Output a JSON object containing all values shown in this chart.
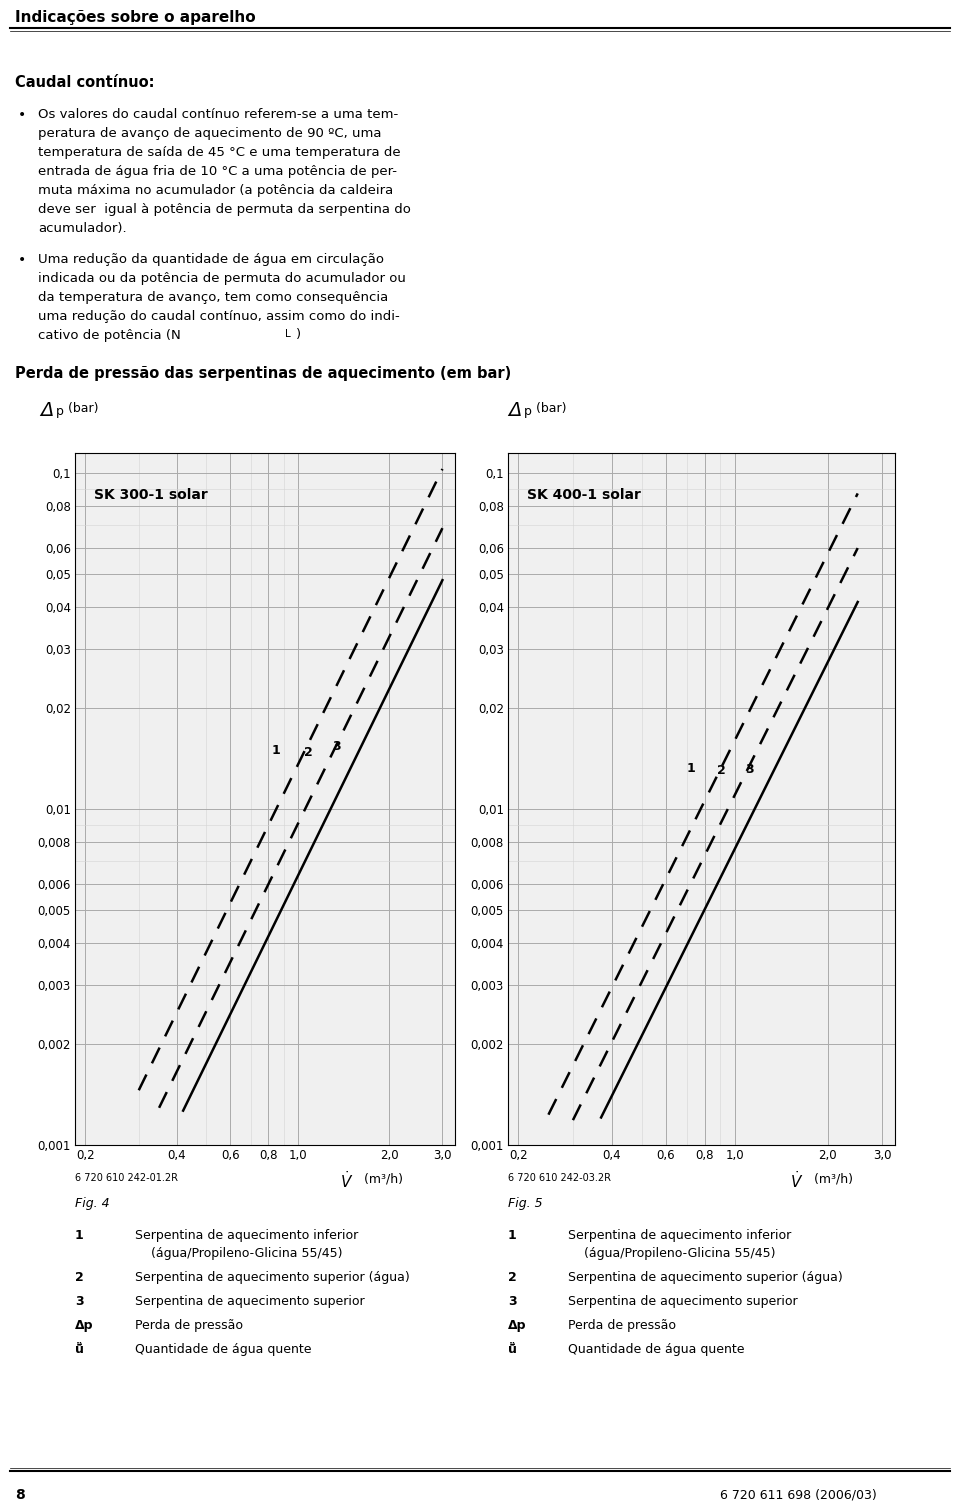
{
  "title_header": "Indicações sobre o aparelho",
  "section_title": "Caudal contínuo:",
  "chart_section_title": "Perda de pressão das serpentinas de aquecimento (em bar)",
  "chart1_title": "SK 300-1 solar",
  "chart2_title": "SK 400-1 solar",
  "ref1": "6 720 610 242-01.2R",
  "ref2": "6 720 610 242-03.2R",
  "fig1": "Fig. 4",
  "fig2": "Fig. 5",
  "page_left": "8",
  "page_right": "6 720 611 698 (2006/03)",
  "yticks": [
    0.001,
    0.002,
    0.003,
    0.004,
    0.005,
    0.006,
    0.008,
    0.01,
    0.02,
    0.03,
    0.04,
    0.05,
    0.06,
    0.08,
    0.1
  ],
  "ytick_labels": [
    "0,001",
    "0,002",
    "0,003",
    "0,004",
    "0,005",
    "0,006",
    "0,008",
    "0,01",
    "0,02",
    "0,03",
    "0,04",
    "0,05",
    "0,06",
    "0,08",
    "0,1"
  ],
  "xticks": [
    0.2,
    0.4,
    0.6,
    0.8,
    1.0,
    2.0,
    3.0
  ],
  "xtick_labels": [
    "0,2",
    "0,4",
    "0,6",
    "0,8",
    "1,0",
    "2,0",
    "3,0"
  ],
  "bg_color": "#ffffff",
  "grid_major_color": "#aaaaaa",
  "grid_minor_color": "#d5d5d5",
  "chart_bg": "#f0f0f0",
  "bullet1_lines": [
    "Os valores do caudal contínuo referem-se a uma tem-",
    "peratura de avanço de aquecimento de 90 ºC, uma",
    "temperatura de saída de 45 °C e uma temperatura de",
    "entrada de água fria de 10 °C a uma potência de per-",
    "muta máxima no acumulador (a potência da caldeira",
    "deve ser  igual à potência de permuta da serpentina do",
    "acumulador)."
  ],
  "bullet2_lines": [
    "Uma redução da quantidade de água em circulação",
    "indicada ou da potência de permuta do acumulador ou",
    "da temperatura de avanço, tem como consequência",
    "uma redução do caudal contínuo, assim como do indi-",
    "cativo de potência (N"
  ],
  "legend_left": [
    [
      "1",
      "Serpentina de aquecimento inferior"
    ],
    [
      "",
      "(água/Propileno-Glicina 55/45)"
    ],
    [
      "2",
      "Serpentina de aquecimento superior (água)"
    ],
    [
      "3",
      "Serpentina de aquecimento superior"
    ],
    [
      "Δp",
      "Perda de pressão"
    ],
    [
      "ṻ̇",
      "Quantidade de água quente"
    ]
  ],
  "legend_right": [
    [
      "1",
      "Serpentina de aquecimento inferior"
    ],
    [
      "",
      "(água/Propileno-Glicina 55/45)"
    ],
    [
      "2",
      "Serpentina de aquecimento superior (água)"
    ],
    [
      "3",
      "Serpentina de aquecimento superior"
    ],
    [
      "Δp",
      "Perda de pressão"
    ],
    [
      "ṻ̇",
      "Quantidade de água quente"
    ]
  ],
  "ch1_line1_k": 0.0135,
  "ch1_line2_k": 0.009,
  "ch1_line3_k": 0.0063,
  "ch2_line1_k": 0.016,
  "ch2_line2_k": 0.011,
  "ch2_line3_k": 0.0076,
  "line_n": 1.85,
  "ch1_line1_xlim": [
    0.3,
    3.0
  ],
  "ch1_line2_xlim": [
    0.35,
    3.0
  ],
  "ch1_line3_xlim": [
    0.42,
    3.0
  ],
  "ch2_line1_xlim": [
    0.25,
    2.5
  ],
  "ch2_line2_xlim": [
    0.3,
    2.5
  ],
  "ch2_line3_xlim": [
    0.37,
    2.5
  ]
}
